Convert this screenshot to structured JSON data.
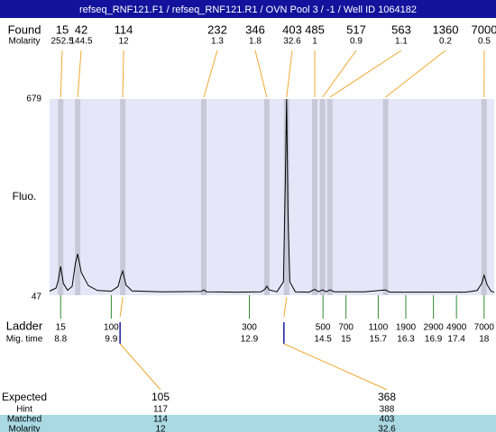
{
  "chart_data": {
    "type": "electropherogram",
    "title": "refseq_RNF121.F1 / refseq_RNF121.R1 / OVN Pool 3 / -1 / Well ID 1064182",
    "y_label": "Fluo.",
    "ylim": [
      47,
      679
    ],
    "yticks": [
      47,
      679
    ],
    "xlim": [
      8.56,
      18.22
    ],
    "trace": {
      "color": "#000000",
      "x": [
        8.56,
        8.7,
        8.75,
        8.8,
        8.86,
        8.95,
        9.05,
        9.12,
        9.17,
        9.25,
        9.4,
        9.6,
        9.9,
        10.05,
        10.1,
        10.15,
        10.22,
        10.35,
        11.0,
        11.85,
        11.91,
        11.97,
        12.6,
        13.15,
        13.24,
        13.28,
        13.33,
        13.5,
        13.64,
        13.68,
        13.71,
        13.74,
        13.78,
        13.9,
        14.2,
        14.32,
        14.4,
        14.49,
        14.57,
        14.65,
        14.75,
        15.4,
        15.86,
        15.95,
        16.6,
        17.6,
        17.85,
        17.95,
        18.0,
        18.07,
        18.15,
        18.22
      ],
      "values": [
        60,
        70,
        95,
        140,
        85,
        63,
        75,
        150,
        180,
        120,
        78,
        62,
        60,
        75,
        105,
        125,
        80,
        61,
        58,
        59,
        64,
        58,
        57,
        58,
        66,
        76,
        64,
        58,
        90,
        400,
        679,
        300,
        90,
        58,
        57,
        66,
        58,
        64,
        58,
        64,
        58,
        58,
        64,
        57,
        57,
        57,
        62,
        85,
        111,
        80,
        60,
        57
      ]
    },
    "found": {
      "label": "Found",
      "molarity_label": "Molarity",
      "sizes": [
        15,
        42,
        114,
        232,
        346,
        403,
        485,
        517,
        563,
        1360,
        7000
      ],
      "molarity": [
        252.5,
        144.5,
        12,
        1.3,
        1.8,
        32.6,
        1,
        0.9,
        1.1,
        0.2,
        0.5
      ],
      "x": [
        8.8,
        9.17,
        10.15,
        11.91,
        13.28,
        13.71,
        14.32,
        14.49,
        14.65,
        15.86,
        18.0
      ]
    },
    "ladder": {
      "label": "Ladder",
      "time_label": "Mig. time",
      "sizes": [
        15,
        100,
        300,
        500,
        700,
        1100,
        1900,
        2900,
        4900,
        7000
      ],
      "x": [
        8.8,
        9.9,
        12.9,
        14.5,
        15,
        15.7,
        16.3,
        16.9,
        17.4,
        18
      ]
    },
    "expected": {
      "row_labels": [
        "Expected",
        "Hint",
        "Matched",
        "Molarity"
      ],
      "columns": [
        {
          "expected": 105,
          "hint": 117,
          "matched": 114,
          "molarity": 12
        },
        {
          "expected": 368,
          "hint": 388,
          "matched": 403,
          "molarity": 32.6
        }
      ]
    }
  }
}
